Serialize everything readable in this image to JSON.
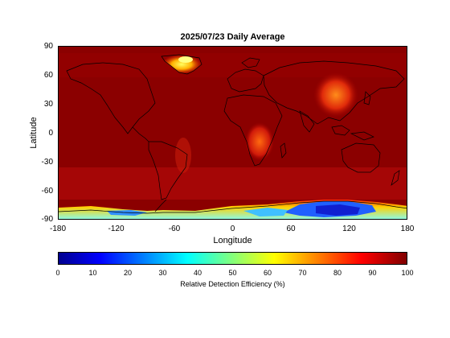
{
  "title": "2025/07/23 Daily Average",
  "xlabel": "Longitude",
  "ylabel": "Latitude",
  "xticks": [
    "-180",
    "-120",
    "-60",
    "0",
    "60",
    "120",
    "180"
  ],
  "yticks": [
    "90",
    "60",
    "30",
    "0",
    "-30",
    "-60",
    "-90"
  ],
  "colorbar": {
    "label": "Relative Detection Efficiency (%)",
    "ticks": [
      "0",
      "10",
      "20",
      "30",
      "40",
      "50",
      "60",
      "70",
      "80",
      "90",
      "100"
    ],
    "colors": [
      "#00008f",
      "#0000ff",
      "#00ffff",
      "#ffff00",
      "#ff0000",
      "#800000"
    ]
  },
  "map": {
    "background_color": "#8b0000",
    "low_efficiency_regions": [
      "Antarctica",
      "Greenland"
    ],
    "high_efficiency_color": "#7a0000"
  }
}
